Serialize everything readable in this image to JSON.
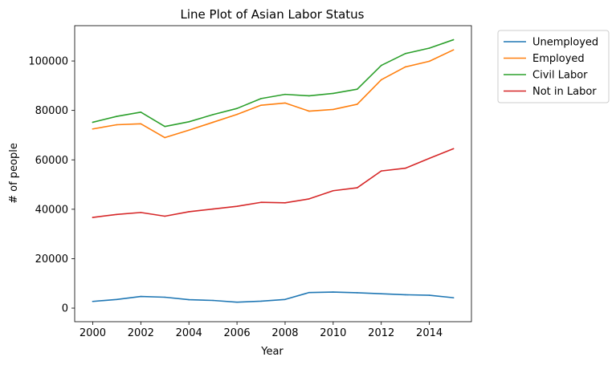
{
  "chart_data": {
    "type": "line",
    "title": "Line Plot of Asian Labor Status",
    "xlabel": "Year",
    "ylabel": "# of people",
    "xlim": [
      1999.25,
      2015.75
    ],
    "ylim": [
      -5500,
      114300
    ],
    "xticks": [
      2000,
      2002,
      2004,
      2006,
      2008,
      2010,
      2012,
      2014
    ],
    "yticks": [
      0,
      20000,
      40000,
      60000,
      80000,
      100000
    ],
    "grid": false,
    "legend_position": "outside-top-right",
    "x": [
      2000,
      2001,
      2002,
      2003,
      2004,
      2005,
      2006,
      2007,
      2008,
      2009,
      2010,
      2011,
      2012,
      2013,
      2014,
      2015
    ],
    "series": [
      {
        "name": "Unemployed",
        "color": "#1f77b4",
        "values": [
          2700,
          3500,
          4700,
          4400,
          3400,
          3100,
          2400,
          2800,
          3500,
          6300,
          6500,
          6200,
          5800,
          5400,
          5200,
          4200
        ]
      },
      {
        "name": "Employed",
        "color": "#ff7f0e",
        "values": [
          72500,
          74200,
          74600,
          69000,
          72000,
          75200,
          78400,
          82100,
          83000,
          79700,
          80400,
          82500,
          92400,
          97600,
          99900,
          104500
        ]
      },
      {
        "name": "Civil Labor",
        "color": "#2ca02c",
        "values": [
          75200,
          77600,
          79300,
          73500,
          75400,
          78300,
          80800,
          84800,
          86500,
          85900,
          86900,
          88600,
          98200,
          103000,
          105200,
          108600
        ]
      },
      {
        "name": "Not in Labor",
        "color": "#d62728",
        "values": [
          36700,
          37900,
          38700,
          37200,
          39000,
          40100,
          41200,
          42800,
          42600,
          44200,
          47500,
          48700,
          55500,
          56600,
          60600,
          64500
        ]
      }
    ]
  }
}
